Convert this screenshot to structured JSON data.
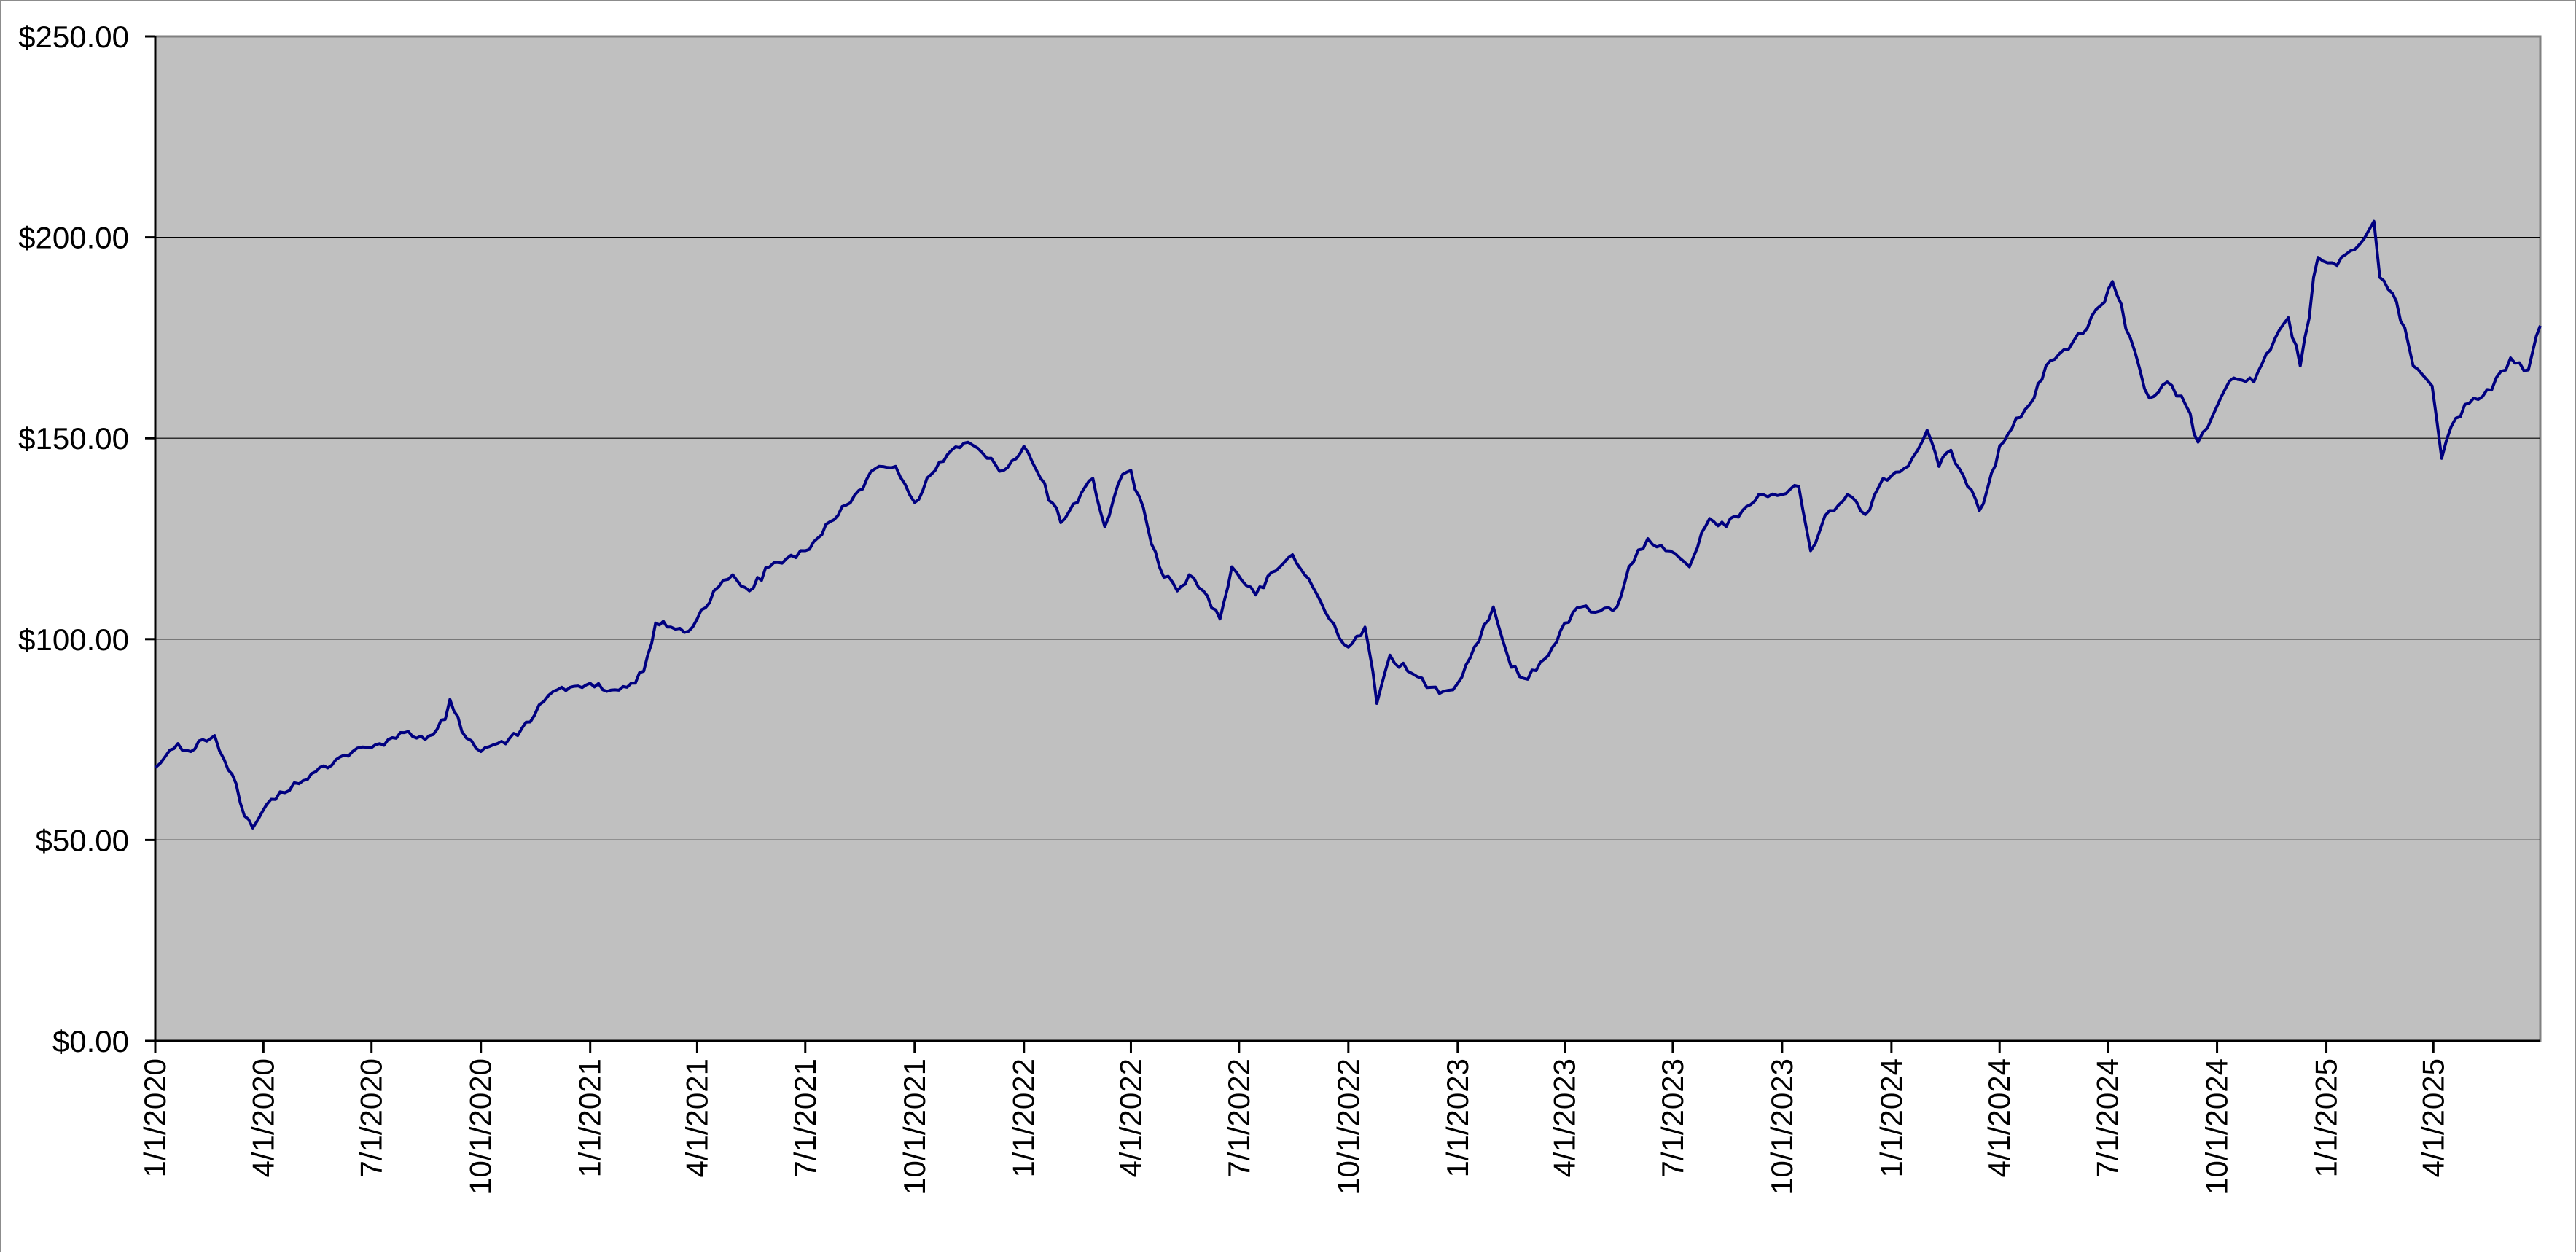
{
  "chart_data": {
    "type": "line",
    "title": "",
    "xlabel": "",
    "ylabel": "",
    "x_range": [
      "2020-01-01",
      "2025-06-30"
    ],
    "ylim": [
      0,
      250
    ],
    "yticks": [
      0,
      50,
      100,
      150,
      200,
      250
    ],
    "ytick_labels": [
      "$0.00",
      "$50.00",
      "$100.00",
      "$150.00",
      "$200.00",
      "$250.00"
    ],
    "xticks": [
      "2020-01-01",
      "2020-04-01",
      "2020-07-01",
      "2020-10-01",
      "2021-01-01",
      "2021-04-01",
      "2021-07-01",
      "2021-10-01",
      "2022-01-01",
      "2022-04-01",
      "2022-07-01",
      "2022-10-01",
      "2023-01-01",
      "2023-04-01",
      "2023-07-01",
      "2023-10-01",
      "2024-01-01",
      "2024-04-01",
      "2024-07-01",
      "2024-10-01",
      "2025-01-01",
      "2025-04-01"
    ],
    "xtick_labels": [
      "1/1/2020",
      "4/1/2020",
      "7/1/2020",
      "10/1/2020",
      "1/1/2021",
      "4/1/2021",
      "7/1/2021",
      "10/1/2021",
      "1/1/2022",
      "4/1/2022",
      "7/1/2022",
      "10/1/2022",
      "1/1/2023",
      "4/1/2023",
      "7/1/2023",
      "10/1/2023",
      "1/1/2024",
      "4/1/2024",
      "7/1/2024",
      "10/1/2024",
      "1/1/2025",
      "4/1/2025"
    ],
    "grid": true,
    "legend": "none",
    "colors": {
      "plot_background": "#c0c0c0",
      "line": "#000080",
      "gridline": "#000000"
    },
    "series": [
      {
        "points": [
          [
            "2020-01-01",
            68
          ],
          [
            "2020-01-10",
            71
          ],
          [
            "2020-01-20",
            74
          ],
          [
            "2020-01-31",
            72
          ],
          [
            "2020-02-10",
            75
          ],
          [
            "2020-02-20",
            76
          ],
          [
            "2020-02-28",
            70
          ],
          [
            "2020-03-09",
            64
          ],
          [
            "2020-03-16",
            56
          ],
          [
            "2020-03-23",
            53
          ],
          [
            "2020-03-31",
            57
          ],
          [
            "2020-04-15",
            62
          ],
          [
            "2020-05-01",
            64
          ],
          [
            "2020-05-15",
            67
          ],
          [
            "2020-06-01",
            70
          ],
          [
            "2020-06-15",
            72
          ],
          [
            "2020-07-01",
            73
          ],
          [
            "2020-07-15",
            75
          ],
          [
            "2020-08-01",
            77
          ],
          [
            "2020-08-15",
            75
          ],
          [
            "2020-09-01",
            80
          ],
          [
            "2020-09-05",
            85
          ],
          [
            "2020-09-15",
            77
          ],
          [
            "2020-10-01",
            72
          ],
          [
            "2020-10-15",
            74
          ],
          [
            "2020-11-01",
            76
          ],
          [
            "2020-11-15",
            81
          ],
          [
            "2020-12-01",
            87
          ],
          [
            "2020-12-15",
            88
          ],
          [
            "2021-01-01",
            89
          ],
          [
            "2021-01-15",
            87
          ],
          [
            "2021-02-01",
            88
          ],
          [
            "2021-02-15",
            92
          ],
          [
            "2021-02-25",
            104
          ],
          [
            "2021-03-10",
            103
          ],
          [
            "2021-03-25",
            102
          ],
          [
            "2021-04-01",
            105
          ],
          [
            "2021-04-15",
            112
          ],
          [
            "2021-05-01",
            116
          ],
          [
            "2021-05-15",
            112
          ],
          [
            "2021-06-01",
            118
          ],
          [
            "2021-06-15",
            120
          ],
          [
            "2021-07-01",
            122
          ],
          [
            "2021-07-15",
            126
          ],
          [
            "2021-08-01",
            133
          ],
          [
            "2021-08-15",
            137
          ],
          [
            "2021-09-01",
            143
          ],
          [
            "2021-09-15",
            143
          ],
          [
            "2021-10-01",
            134
          ],
          [
            "2021-10-15",
            141
          ],
          [
            "2021-11-01",
            147
          ],
          [
            "2021-11-15",
            149
          ],
          [
            "2021-12-01",
            145
          ],
          [
            "2021-12-15",
            142
          ],
          [
            "2022-01-01",
            148
          ],
          [
            "2022-01-15",
            140
          ],
          [
            "2022-02-01",
            129
          ],
          [
            "2022-02-15",
            134
          ],
          [
            "2022-02-28",
            140
          ],
          [
            "2022-03-10",
            128
          ],
          [
            "2022-03-25",
            141
          ],
          [
            "2022-04-01",
            142
          ],
          [
            "2022-04-15",
            128
          ],
          [
            "2022-04-25",
            118
          ],
          [
            "2022-05-10",
            112
          ],
          [
            "2022-05-20",
            116
          ],
          [
            "2022-06-01",
            112
          ],
          [
            "2022-06-15",
            105
          ],
          [
            "2022-06-25",
            118
          ],
          [
            "2022-07-15",
            111
          ],
          [
            "2022-08-01",
            117
          ],
          [
            "2022-08-15",
            121
          ],
          [
            "2022-09-01",
            113
          ],
          [
            "2022-09-15",
            105
          ],
          [
            "2022-10-01",
            98
          ],
          [
            "2022-10-15",
            103
          ],
          [
            "2022-10-25",
            84
          ],
          [
            "2022-11-05",
            96
          ],
          [
            "2022-11-20",
            92
          ],
          [
            "2022-12-10",
            88
          ],
          [
            "2022-12-20",
            87
          ],
          [
            "2023-01-01",
            89
          ],
          [
            "2023-01-15",
            98
          ],
          [
            "2023-01-31",
            108
          ],
          [
            "2023-02-15",
            93
          ],
          [
            "2023-03-01",
            90
          ],
          [
            "2023-03-15",
            95
          ],
          [
            "2023-04-01",
            104
          ],
          [
            "2023-04-15",
            108
          ],
          [
            "2023-05-01",
            107
          ],
          [
            "2023-05-15",
            108
          ],
          [
            "2023-05-25",
            118
          ],
          [
            "2023-06-10",
            125
          ],
          [
            "2023-06-25",
            122
          ],
          [
            "2023-07-15",
            118
          ],
          [
            "2023-08-01",
            130
          ],
          [
            "2023-08-15",
            128
          ],
          [
            "2023-09-01",
            133
          ],
          [
            "2023-09-15",
            136
          ],
          [
            "2023-10-01",
            136
          ],
          [
            "2023-10-15",
            138
          ],
          [
            "2023-10-25",
            122
          ],
          [
            "2023-11-10",
            132
          ],
          [
            "2023-11-25",
            136
          ],
          [
            "2023-12-10",
            131
          ],
          [
            "2023-12-25",
            140
          ],
          [
            "2024-01-15",
            143
          ],
          [
            "2024-01-31",
            152
          ],
          [
            "2024-02-10",
            143
          ],
          [
            "2024-02-20",
            147
          ],
          [
            "2024-03-05",
            138
          ],
          [
            "2024-03-15",
            132
          ],
          [
            "2024-04-01",
            148
          ],
          [
            "2024-04-15",
            155
          ],
          [
            "2024-04-30",
            160
          ],
          [
            "2024-05-10",
            168
          ],
          [
            "2024-05-25",
            172
          ],
          [
            "2024-06-10",
            176
          ],
          [
            "2024-06-25",
            183
          ],
          [
            "2024-07-05",
            189
          ],
          [
            "2024-07-20",
            175
          ],
          [
            "2024-08-05",
            160
          ],
          [
            "2024-08-20",
            164
          ],
          [
            "2024-09-05",
            158
          ],
          [
            "2024-09-15",
            149
          ],
          [
            "2024-10-01",
            158
          ],
          [
            "2024-10-15",
            165
          ],
          [
            "2024-11-01",
            164
          ],
          [
            "2024-11-15",
            172
          ],
          [
            "2024-11-30",
            180
          ],
          [
            "2024-12-10",
            168
          ],
          [
            "2024-12-25",
            195
          ],
          [
            "2025-01-10",
            193
          ],
          [
            "2025-01-25",
            197
          ],
          [
            "2025-02-10",
            204
          ],
          [
            "2025-02-15",
            190
          ],
          [
            "2025-03-01",
            184
          ],
          [
            "2025-03-15",
            168
          ],
          [
            "2025-03-31",
            163
          ],
          [
            "2025-04-08",
            145
          ],
          [
            "2025-04-20",
            155
          ],
          [
            "2025-05-05",
            160
          ],
          [
            "2025-05-20",
            162
          ],
          [
            "2025-06-05",
            170
          ],
          [
            "2025-06-20",
            167
          ],
          [
            "2025-06-30",
            178
          ]
        ]
      }
    ]
  }
}
